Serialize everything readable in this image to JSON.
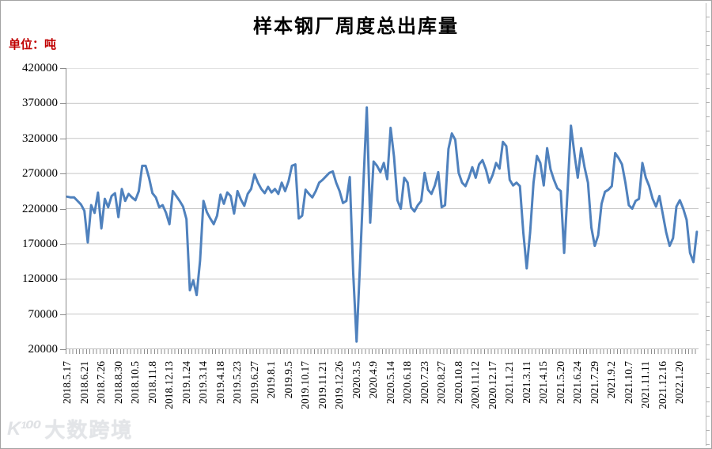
{
  "title": "样本钢厂周度总出库量",
  "unit_label": "单位：吨",
  "watermark": {
    "logo": "K¹⁰⁰",
    "text": "大数跨境"
  },
  "chart_data": {
    "type": "line",
    "title": "样本钢厂周度总出库量",
    "ylabel": "单位：吨",
    "xlabel": "",
    "ylim": [
      20000,
      420000
    ],
    "y_tick_interval": 50000,
    "y_ticks": [
      420000,
      370000,
      320000,
      270000,
      220000,
      170000,
      120000,
      70000,
      20000
    ],
    "grid": true,
    "legend": "none",
    "line_color": "#4F81BD",
    "grid_color": "#c6c6c6",
    "axis_color": "#8c8c8c",
    "label_every_n_points": 5,
    "x_labels": [
      "2018.5.17",
      "2018.6.21",
      "2018.7.26",
      "2018.8.30",
      "2018.10.5",
      "2018.11.8",
      "2018.12.13",
      "2019.1.24",
      "2019.3.14",
      "2019.4.18",
      "2019.5.23",
      "2019.6.27",
      "2019.8.1",
      "2019.9.5",
      "2019.10.17",
      "2019.11.21",
      "2019.12.26",
      "2020.3.5",
      "2020.4.9",
      "2020.5.14",
      "2020.6.18",
      "2020.7.23",
      "2020.8.27",
      "2020.10.8",
      "2020.11.12",
      "2020.12.17",
      "2021.1.21",
      "2021.3.11",
      "2021.4.15",
      "2021.5.20",
      "2021.6.24",
      "2021.7.29",
      "2021.9.2",
      "2021.10.7",
      "2021.11.11",
      "2021.12.16",
      "2022.1.20"
    ],
    "values": [
      237000,
      236000,
      236000,
      231000,
      226000,
      217000,
      172000,
      225000,
      214000,
      243000,
      192000,
      234000,
      222000,
      238000,
      242000,
      208000,
      248000,
      231000,
      241000,
      236000,
      232000,
      245000,
      281000,
      281000,
      264000,
      242000,
      236000,
      222000,
      225000,
      214000,
      198000,
      245000,
      238000,
      231000,
      223000,
      205000,
      104000,
      118000,
      97000,
      146000,
      231000,
      215000,
      206000,
      198000,
      210000,
      240000,
      227000,
      243000,
      238000,
      213000,
      245000,
      233000,
      224000,
      241000,
      248000,
      269000,
      257000,
      248000,
      242000,
      251000,
      243000,
      248000,
      241000,
      257000,
      245000,
      259000,
      281000,
      283000,
      206000,
      210000,
      247000,
      241000,
      236000,
      245000,
      257000,
      261000,
      266000,
      271000,
      273000,
      257000,
      245000,
      228000,
      231000,
      265000,
      129000,
      31000,
      140000,
      255000,
      364000,
      200000,
      287000,
      281000,
      272000,
      285000,
      262000,
      335000,
      294000,
      232000,
      220000,
      264000,
      257000,
      222000,
      216000,
      225000,
      231000,
      271000,
      247000,
      241000,
      253000,
      272000,
      222000,
      225000,
      305000,
      327000,
      318000,
      271000,
      257000,
      252000,
      264000,
      279000,
      264000,
      283000,
      289000,
      276000,
      257000,
      268000,
      285000,
      277000,
      315000,
      309000,
      261000,
      253000,
      257000,
      252000,
      186000,
      135000,
      186000,
      257000,
      295000,
      285000,
      253000,
      306000,
      276000,
      261000,
      249000,
      245000,
      157000,
      245000,
      338000,
      299000,
      264000,
      306000,
      279000,
      257000,
      193000,
      167000,
      182000,
      227000,
      244000,
      247000,
      252000,
      299000,
      292000,
      283000,
      257000,
      225000,
      220000,
      231000,
      234000,
      285000,
      264000,
      252000,
      234000,
      223000,
      238000,
      212000,
      186000,
      167000,
      178000,
      223000,
      232000,
      220000,
      204000,
      157000,
      144000,
      187000
    ]
  }
}
